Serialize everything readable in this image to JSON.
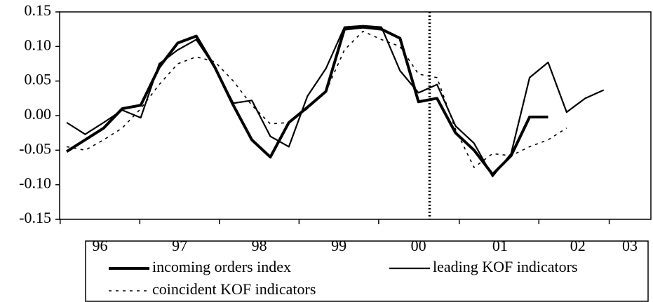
{
  "chart_data": {
    "type": "line",
    "x": [
      0,
      1,
      2,
      3,
      4,
      5,
      6,
      7,
      8,
      9,
      10,
      11,
      12,
      13,
      14,
      15,
      16,
      17,
      18,
      19,
      20,
      21,
      22,
      23,
      24,
      25,
      26,
      27,
      28,
      29
    ],
    "xlim": [
      -0.38,
      31.55
    ],
    "xticks": [
      {
        "value": 1.8,
        "label": "96"
      },
      {
        "value": 6.1,
        "label": "97"
      },
      {
        "value": 10.4,
        "label": "98"
      },
      {
        "value": 14.7,
        "label": "99"
      },
      {
        "value": 19.0,
        "label": "00"
      },
      {
        "value": 23.4,
        "label": "01"
      },
      {
        "value": 27.6,
        "label": "02"
      },
      {
        "value": 31.0,
        "label": "03"
      }
    ],
    "ylim": [
      -0.15,
      0.15
    ],
    "yticks": [
      {
        "value": 0.15,
        "label": "0.15"
      },
      {
        "value": 0.1,
        "label": "0.10"
      },
      {
        "value": 0.05,
        "label": "0.05"
      },
      {
        "value": 0,
        "label": "0.00"
      },
      {
        "value": -0.05,
        "label": "-0.05"
      },
      {
        "value": -0.1,
        "label": "-0.10"
      },
      {
        "value": -0.15,
        "label": "-0.15"
      }
    ],
    "vline": 19.6,
    "series": [
      {
        "name": "incoming orders index",
        "color": "#000000",
        "width": 4,
        "dash": "none",
        "values": [
          -0.052,
          -0.035,
          -0.018,
          0.01,
          0.015,
          0.07,
          0.105,
          0.115,
          0.07,
          0.015,
          -0.035,
          -0.06,
          -0.01,
          0.012,
          0.035,
          0.125,
          0.128,
          0.125,
          0.112,
          0.02,
          0.025,
          -0.025,
          -0.05,
          -0.085,
          -0.058,
          -0.002,
          -0.002,
          null,
          null,
          null
        ]
      },
      {
        "name": "leading KOF indicators",
        "color": "#000000",
        "width": 2.2,
        "dash": "none",
        "values": [
          -0.01,
          -0.027,
          -0.01,
          0.008,
          -0.003,
          0.075,
          0.095,
          0.11,
          0.07,
          0.018,
          0.022,
          -0.03,
          -0.045,
          0.028,
          0.068,
          0.128,
          0.13,
          0.128,
          0.065,
          0.033,
          0.045,
          -0.015,
          -0.04,
          -0.088,
          -0.055,
          0.055,
          0.077,
          0.005,
          0.025,
          0.037
        ]
      },
      {
        "name": "coincident KOF indicators",
        "color": "#000000",
        "width": 1.6,
        "dash": "4 6",
        "values": [
          -0.045,
          -0.05,
          -0.035,
          -0.018,
          0.01,
          0.045,
          0.075,
          0.085,
          0.078,
          0.05,
          0.015,
          -0.012,
          -0.01,
          0.01,
          0.035,
          0.095,
          0.122,
          0.11,
          0.1,
          0.06,
          0.055,
          -0.02,
          -0.075,
          -0.055,
          -0.058,
          -0.045,
          -0.035,
          -0.018,
          null,
          null
        ]
      }
    ]
  }
}
